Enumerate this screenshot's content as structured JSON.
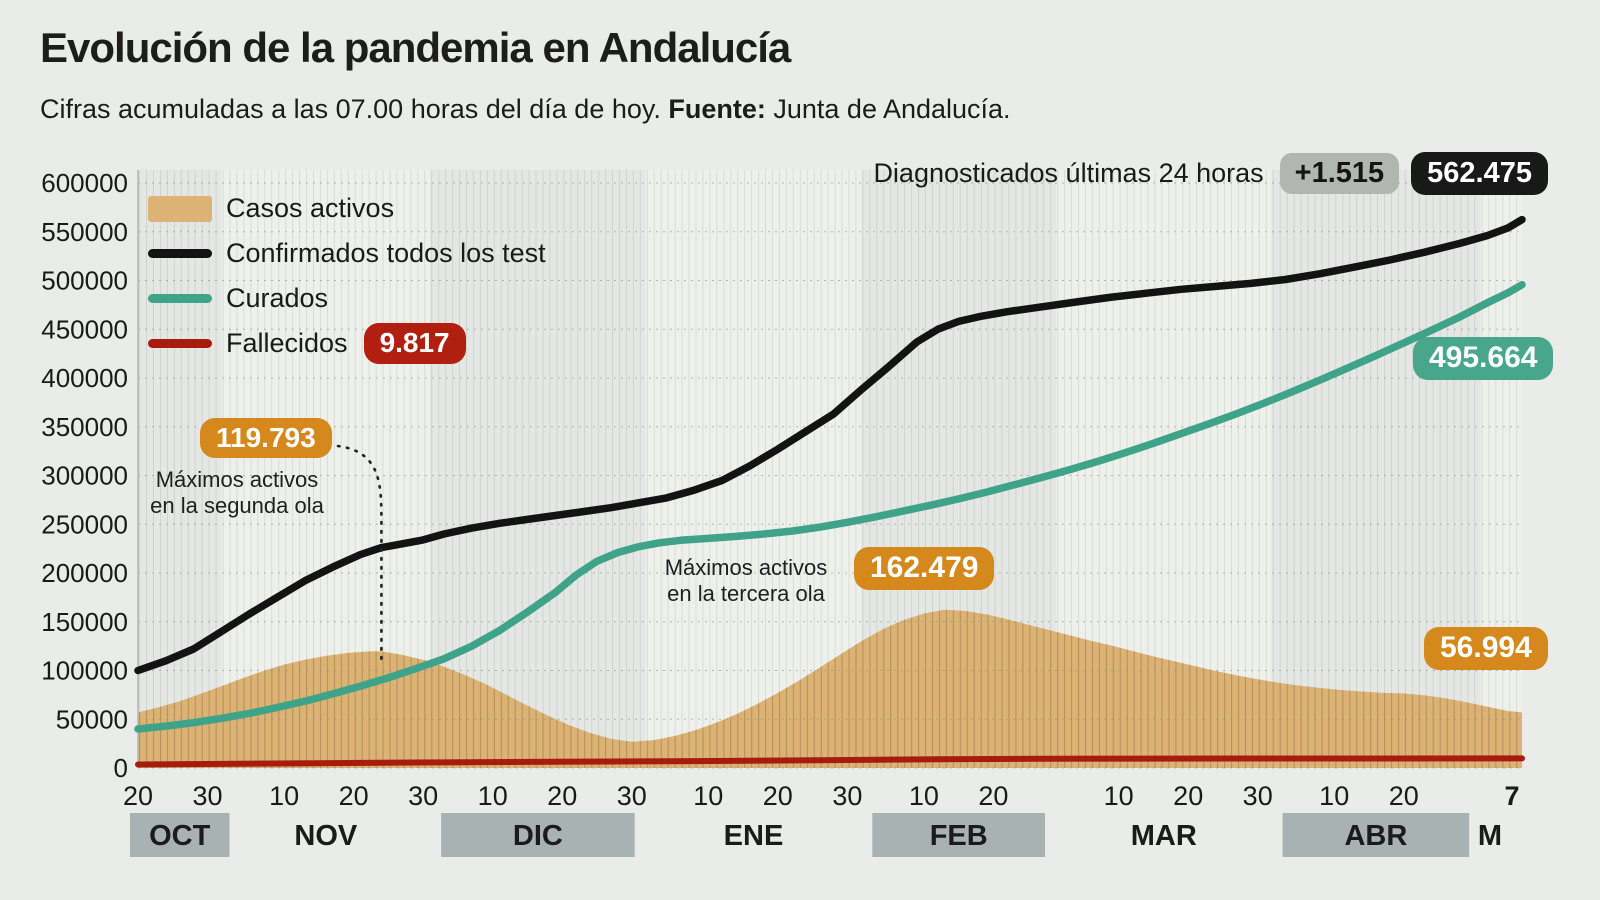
{
  "header": {
    "title": "Evolución de la pandemia en Andalucía",
    "subtitle_text": "Cifras acumuladas a las 07.00 horas del día de hoy. ",
    "subtitle_bold": "Fuente:",
    "subtitle_tail": " Junta de Andalucía."
  },
  "top_right": {
    "label": "Diagnosticados últimas 24 horas",
    "delta_badge": "+1.515",
    "total_badge": "562.475"
  },
  "legend": {
    "items": [
      {
        "label": "Casos activos",
        "type": "area"
      },
      {
        "label": "Confirmados todos los test",
        "type": "line"
      },
      {
        "label": "Curados",
        "type": "line"
      },
      {
        "label": "Fallecidos",
        "type": "line"
      }
    ]
  },
  "badges": {
    "fallecidos": "9.817",
    "segunda_ola": "119.793",
    "tercera_ola": "162.479",
    "curados": "495.664",
    "activos": "56.994"
  },
  "annotations": {
    "segunda_ola_line1": "Máximos activos",
    "segunda_ola_line2": "en la segunda ola",
    "tercera_ola_line1": "Máximos activos",
    "tercera_ola_line2": "en la tercera ola"
  },
  "colors": {
    "page_bg": "#e9ece8",
    "band_dark": "#e4e7e3",
    "band_light": "#eef0ec",
    "area_fill": "#dcb375",
    "area_stripe": "#c69e5e",
    "confirmados": "#131313",
    "curados": "#3fa38a",
    "fallecidos": "#a81c0f",
    "badge_red": "#b01f10",
    "badge_orange": "#d5891d",
    "badge_teal": "#47a68c",
    "badge_black": "#191919",
    "badge_gray": "#b2b6b1",
    "month_badge": "#a9b2b3",
    "grid": "#8d928d",
    "tick_text": "#1a1a1a"
  },
  "chart_data": {
    "type": "area",
    "x_unit": "days since 2020-10-20",
    "x_range": [
      0,
      199
    ],
    "ylim": [
      0,
      600000
    ],
    "grid": "horizontal-dashed, daily vertical stripes, alternating month bands",
    "legend_position": "top-left inside plot",
    "y_ticks": [
      0,
      50000,
      100000,
      150000,
      200000,
      250000,
      300000,
      350000,
      400000,
      450000,
      500000,
      550000,
      600000
    ],
    "x_ticks": [
      {
        "day": 0,
        "label": "20"
      },
      {
        "day": 10,
        "label": "30"
      },
      {
        "day": 21,
        "label": "10"
      },
      {
        "day": 31,
        "label": "20"
      },
      {
        "day": 41,
        "label": "30"
      },
      {
        "day": 51,
        "label": "10"
      },
      {
        "day": 61,
        "label": "20"
      },
      {
        "day": 71,
        "label": "30"
      },
      {
        "day": 82,
        "label": "10"
      },
      {
        "day": 92,
        "label": "20"
      },
      {
        "day": 102,
        "label": "30"
      },
      {
        "day": 113,
        "label": "10"
      },
      {
        "day": 123,
        "label": "20"
      },
      {
        "day": 141,
        "label": "10"
      },
      {
        "day": 151,
        "label": "20"
      },
      {
        "day": 161,
        "label": "30"
      },
      {
        "day": 172,
        "label": "10"
      },
      {
        "day": 182,
        "label": "20"
      },
      {
        "day": 199,
        "label": "7",
        "bold": true
      }
    ],
    "months": [
      {
        "label": "OCT",
        "start": 0,
        "end": 12,
        "shaded": true
      },
      {
        "label": "NOV",
        "start": 12,
        "end": 42,
        "shaded": false
      },
      {
        "label": "DIC",
        "start": 42,
        "end": 73,
        "shaded": true
      },
      {
        "label": "ENE",
        "start": 73,
        "end": 104,
        "shaded": false
      },
      {
        "label": "FEB",
        "start": 104,
        "end": 132,
        "shaded": true
      },
      {
        "label": "MAR",
        "start": 132,
        "end": 163,
        "shaded": false
      },
      {
        "label": "ABR",
        "start": 163,
        "end": 193,
        "shaded": true
      },
      {
        "label": "M",
        "start": 193,
        "end": 199,
        "shaded": false
      }
    ],
    "callouts": {
      "segunda_ola_max": 119793,
      "segunda_ola_max_day": 35,
      "tercera_ola_max": 162479,
      "ultimas_24h": 1515
    },
    "series": [
      {
        "name": "Casos activos",
        "type": "area",
        "final_value": 56994,
        "points": [
          [
            0,
            57000
          ],
          [
            3,
            62500
          ],
          [
            6,
            68500
          ],
          [
            9,
            76000
          ],
          [
            12,
            84000
          ],
          [
            15,
            92000
          ],
          [
            18,
            99500
          ],
          [
            21,
            106000
          ],
          [
            24,
            111000
          ],
          [
            27,
            115000
          ],
          [
            30,
            118000
          ],
          [
            33,
            119500
          ],
          [
            35,
            119793
          ],
          [
            38,
            116000
          ],
          [
            41,
            111000
          ],
          [
            44,
            104000
          ],
          [
            47,
            95500
          ],
          [
            50,
            86000
          ],
          [
            53,
            75000
          ],
          [
            56,
            64000
          ],
          [
            59,
            53500
          ],
          [
            62,
            44000
          ],
          [
            65,
            36000
          ],
          [
            68,
            30000
          ],
          [
            71,
            27000
          ],
          [
            74,
            28500
          ],
          [
            77,
            32500
          ],
          [
            80,
            38500
          ],
          [
            83,
            46000
          ],
          [
            86,
            55000
          ],
          [
            89,
            65500
          ],
          [
            92,
            77000
          ],
          [
            95,
            89500
          ],
          [
            98,
            103000
          ],
          [
            101,
            116500
          ],
          [
            104,
            130000
          ],
          [
            107,
            142000
          ],
          [
            110,
            151500
          ],
          [
            113,
            158500
          ],
          [
            116,
            162479
          ],
          [
            119,
            161000
          ],
          [
            122,
            157500
          ],
          [
            125,
            152500
          ],
          [
            128,
            147000
          ],
          [
            131,
            141500
          ],
          [
            134,
            136000
          ],
          [
            137,
            130500
          ],
          [
            140,
            125500
          ],
          [
            143,
            120000
          ],
          [
            146,
            114500
          ],
          [
            149,
            109500
          ],
          [
            152,
            104500
          ],
          [
            155,
            99500
          ],
          [
            158,
            95000
          ],
          [
            161,
            91000
          ],
          [
            164,
            87500
          ],
          [
            167,
            84500
          ],
          [
            170,
            82000
          ],
          [
            173,
            80000
          ],
          [
            176,
            78500
          ],
          [
            179,
            77000
          ],
          [
            182,
            76500
          ],
          [
            185,
            74500
          ],
          [
            188,
            71500
          ],
          [
            191,
            67500
          ],
          [
            194,
            63000
          ],
          [
            197,
            58500
          ],
          [
            199,
            56994
          ]
        ]
      },
      {
        "name": "Confirmados todos los test",
        "type": "line",
        "final_value": 562475,
        "points": [
          [
            0,
            100000
          ],
          [
            4,
            110000
          ],
          [
            8,
            122000
          ],
          [
            12,
            140000
          ],
          [
            16,
            158000
          ],
          [
            20,
            175000
          ],
          [
            24,
            192000
          ],
          [
            28,
            206000
          ],
          [
            32,
            219000
          ],
          [
            35,
            226000
          ],
          [
            38,
            230000
          ],
          [
            41,
            234000
          ],
          [
            44,
            240000
          ],
          [
            48,
            246000
          ],
          [
            52,
            251000
          ],
          [
            56,
            255000
          ],
          [
            60,
            259000
          ],
          [
            64,
            263000
          ],
          [
            68,
            267000
          ],
          [
            72,
            272000
          ],
          [
            76,
            277000
          ],
          [
            80,
            285000
          ],
          [
            84,
            295000
          ],
          [
            88,
            310000
          ],
          [
            92,
            327000
          ],
          [
            96,
            345000
          ],
          [
            100,
            363000
          ],
          [
            104,
            388000
          ],
          [
            108,
            412000
          ],
          [
            112,
            437000
          ],
          [
            115,
            450000
          ],
          [
            118,
            458000
          ],
          [
            121,
            463000
          ],
          [
            125,
            468000
          ],
          [
            130,
            473000
          ],
          [
            135,
            478000
          ],
          [
            140,
            483000
          ],
          [
            145,
            487000
          ],
          [
            150,
            491000
          ],
          [
            155,
            494000
          ],
          [
            160,
            497000
          ],
          [
            165,
            501000
          ],
          [
            170,
            507000
          ],
          [
            175,
            514000
          ],
          [
            180,
            521000
          ],
          [
            185,
            529000
          ],
          [
            190,
            538000
          ],
          [
            194,
            546000
          ],
          [
            197,
            554000
          ],
          [
            199,
            562475
          ]
        ]
      },
      {
        "name": "Curados",
        "type": "line",
        "final_value": 495664,
        "points": [
          [
            0,
            40000
          ],
          [
            4,
            43000
          ],
          [
            8,
            46500
          ],
          [
            12,
            51000
          ],
          [
            16,
            56000
          ],
          [
            20,
            62000
          ],
          [
            24,
            68500
          ],
          [
            28,
            76000
          ],
          [
            32,
            84000
          ],
          [
            36,
            92500
          ],
          [
            40,
            102000
          ],
          [
            44,
            112000
          ],
          [
            48,
            125000
          ],
          [
            52,
            141000
          ],
          [
            56,
            160000
          ],
          [
            60,
            180000
          ],
          [
            63,
            198000
          ],
          [
            66,
            212000
          ],
          [
            69,
            221000
          ],
          [
            72,
            227000
          ],
          [
            75,
            231000
          ],
          [
            78,
            233500
          ],
          [
            82,
            235500
          ],
          [
            86,
            237500
          ],
          [
            90,
            240000
          ],
          [
            94,
            243000
          ],
          [
            98,
            247000
          ],
          [
            102,
            252000
          ],
          [
            106,
            257500
          ],
          [
            110,
            263500
          ],
          [
            114,
            269500
          ],
          [
            118,
            276000
          ],
          [
            122,
            283000
          ],
          [
            126,
            290500
          ],
          [
            130,
            298000
          ],
          [
            134,
            306000
          ],
          [
            138,
            314500
          ],
          [
            142,
            323500
          ],
          [
            146,
            333000
          ],
          [
            150,
            343000
          ],
          [
            154,
            353000
          ],
          [
            158,
            363500
          ],
          [
            162,
            374500
          ],
          [
            166,
            386000
          ],
          [
            170,
            398000
          ],
          [
            174,
            410500
          ],
          [
            178,
            423000
          ],
          [
            182,
            436000
          ],
          [
            186,
            449000
          ],
          [
            190,
            462500
          ],
          [
            194,
            477000
          ],
          [
            197,
            487500
          ],
          [
            199,
            495664
          ]
        ]
      },
      {
        "name": "Fallecidos",
        "type": "line",
        "final_value": 9817,
        "points": [
          [
            0,
            3600
          ],
          [
            20,
            4600
          ],
          [
            40,
            5600
          ],
          [
            60,
            6400
          ],
          [
            80,
            7100
          ],
          [
            100,
            8100
          ],
          [
            115,
            9000
          ],
          [
            130,
            9400
          ],
          [
            145,
            9600
          ],
          [
            160,
            9700
          ],
          [
            175,
            9770
          ],
          [
            199,
            9817
          ]
        ]
      }
    ]
  }
}
